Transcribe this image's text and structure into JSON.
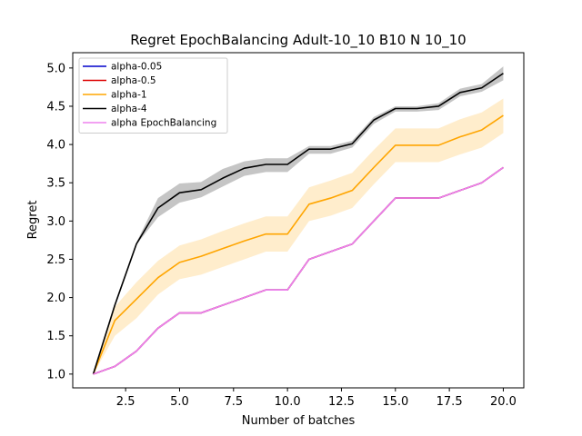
{
  "chart_data": {
    "type": "line",
    "title": "Regret EpochBalancing Adult-10_10 B10 N 10_10",
    "xlabel": "Number of batches",
    "ylabel": "Regret",
    "xlim": [
      0.05,
      20.95
    ],
    "ylim": [
      0.82,
      5.2
    ],
    "xticks": [
      2.5,
      5.0,
      7.5,
      10.0,
      12.5,
      15.0,
      17.5,
      20.0
    ],
    "xtick_labels": [
      "2.5",
      "5.0",
      "7.5",
      "10.0",
      "12.5",
      "15.0",
      "17.5",
      "20.0"
    ],
    "yticks": [
      1.0,
      1.5,
      2.0,
      2.5,
      3.0,
      3.5,
      4.0,
      4.5,
      5.0
    ],
    "ytick_labels": [
      "1.0",
      "1.5",
      "2.0",
      "2.5",
      "3.0",
      "3.5",
      "4.0",
      "4.5",
      "5.0"
    ],
    "grid": false,
    "legend_position": "top-left",
    "x": [
      1,
      2,
      3,
      4,
      5,
      6,
      7,
      8,
      9,
      10,
      11,
      12,
      13,
      14,
      15,
      16,
      17,
      18,
      19,
      20
    ],
    "series": [
      {
        "name": "alpha-0.05",
        "color": "#0000cc",
        "values": [
          1.0,
          1.1,
          1.3,
          1.6,
          1.8,
          1.8,
          1.9,
          2.0,
          2.1,
          2.1,
          2.5,
          2.6,
          2.7,
          3.0,
          3.3,
          3.3,
          3.3,
          3.4,
          3.5,
          3.7
        ]
      },
      {
        "name": "alpha-0.5",
        "color": "#dd0000",
        "values": [
          1.0,
          1.1,
          1.3,
          1.6,
          1.8,
          1.8,
          1.9,
          2.0,
          2.1,
          2.1,
          2.5,
          2.6,
          2.7,
          3.0,
          3.3,
          3.3,
          3.3,
          3.4,
          3.5,
          3.7
        ]
      },
      {
        "name": "alpha-1",
        "color": "#ffa500",
        "values": [
          1.0,
          1.7,
          1.98,
          2.26,
          2.46,
          2.54,
          2.64,
          2.74,
          2.83,
          2.83,
          3.22,
          3.3,
          3.4,
          3.7,
          3.99,
          3.99,
          3.99,
          4.1,
          4.19,
          4.38
        ],
        "band_lower": [
          1.0,
          1.5,
          1.73,
          2.04,
          2.24,
          2.3,
          2.4,
          2.5,
          2.6,
          2.6,
          3.0,
          3.07,
          3.17,
          3.48,
          3.77,
          3.77,
          3.77,
          3.87,
          3.96,
          4.15
        ],
        "band_upper": [
          1.0,
          1.88,
          2.2,
          2.48,
          2.68,
          2.76,
          2.87,
          2.97,
          3.06,
          3.06,
          3.44,
          3.53,
          3.63,
          3.93,
          4.21,
          4.21,
          4.21,
          4.33,
          4.42,
          4.6
        ]
      },
      {
        "name": "alpha-4",
        "color": "#000000",
        "values": [
          1.0,
          1.9,
          2.7,
          3.17,
          3.37,
          3.41,
          3.56,
          3.69,
          3.74,
          3.74,
          3.94,
          3.94,
          4.01,
          4.32,
          4.47,
          4.47,
          4.5,
          4.68,
          4.74,
          4.93
        ],
        "band_lower": [
          1.0,
          1.88,
          2.69,
          3.05,
          3.24,
          3.31,
          3.45,
          3.59,
          3.64,
          3.64,
          3.88,
          3.88,
          3.96,
          4.27,
          4.43,
          4.43,
          4.45,
          4.63,
          4.69,
          4.84
        ],
        "band_upper": [
          1.0,
          1.92,
          2.72,
          3.3,
          3.49,
          3.51,
          3.68,
          3.78,
          3.82,
          3.82,
          3.98,
          3.98,
          4.05,
          4.36,
          4.5,
          4.5,
          4.54,
          4.73,
          4.79,
          5.02
        ]
      },
      {
        "name": "alpha EpochBalancing",
        "color": "#ee82ee",
        "values": [
          1.0,
          1.1,
          1.3,
          1.6,
          1.8,
          1.8,
          1.9,
          2.0,
          2.1,
          2.1,
          2.5,
          2.6,
          2.7,
          3.0,
          3.3,
          3.3,
          3.3,
          3.4,
          3.5,
          3.7
        ]
      }
    ],
    "draw_order": [
      "alpha-1",
      "alpha-4",
      "alpha-0.05",
      "alpha-0.5",
      "alpha EpochBalancing"
    ]
  }
}
